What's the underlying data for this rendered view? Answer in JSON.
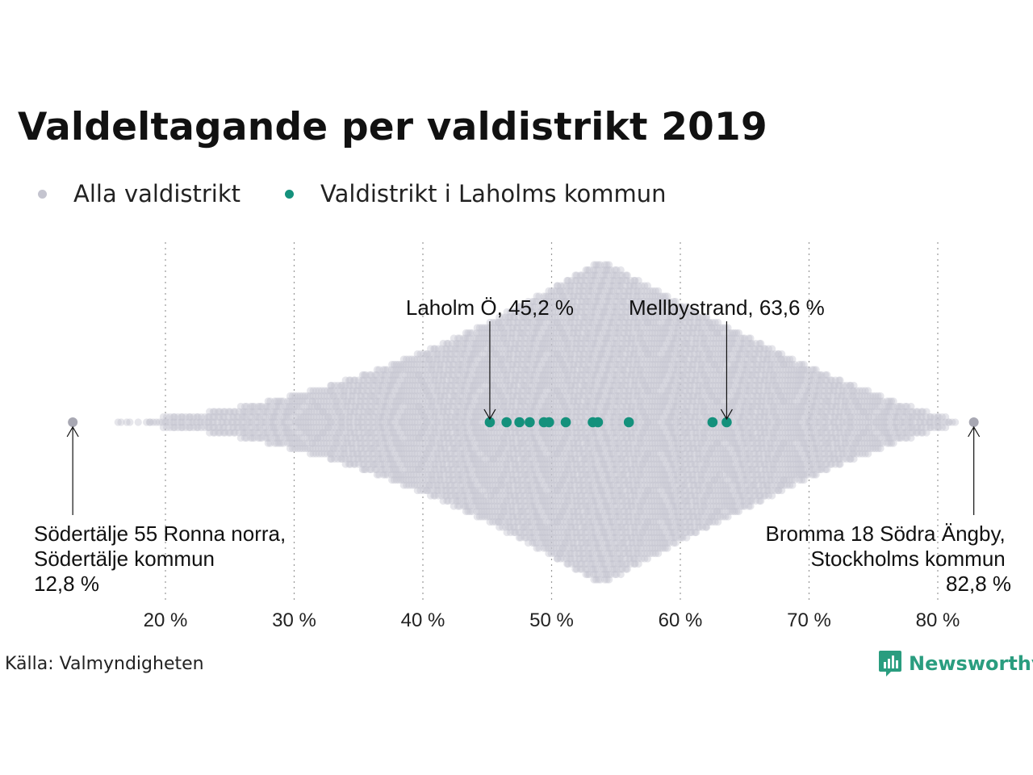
{
  "title": "Valdeltagande per valdistrikt 2019",
  "legend": [
    {
      "label": "Alla valdistrikt",
      "color": "#c4c4cf"
    },
    {
      "label": "Valdistrikt i Laholms kommun",
      "color": "#14917c"
    }
  ],
  "source": "Källa: Valmyndigheten",
  "brand": {
    "name": "Newsworthy",
    "icon": "newsworthy-logo-icon",
    "color": "#2a9d7f"
  },
  "chart_data": {
    "type": "scatter",
    "xlim": [
      10,
      85
    ],
    "x_ticks": [
      20,
      30,
      40,
      50,
      60,
      70,
      80
    ],
    "x_tick_labels": [
      "20 %",
      "30 %",
      "40 %",
      "50 %",
      "60 %",
      "70 %",
      "80 %"
    ],
    "grid": "vertical-dotted",
    "series": [
      {
        "name": "Alla valdistrikt",
        "color": "#c4c4cf",
        "distribution": "beeswarm",
        "min": 12.8,
        "max": 82.8,
        "mode": 53.8
      },
      {
        "name": "Valdistrikt i Laholms kommun",
        "color": "#14917c",
        "values": [
          45.2,
          46.5,
          47.5,
          48.3,
          49.4,
          49.8,
          51.1,
          53.2,
          53.6,
          56.0,
          62.5,
          63.6
        ]
      }
    ],
    "annotations": [
      {
        "lines": [
          "Laholm Ö, 45,2 %"
        ],
        "value": 45.2
      },
      {
        "lines": [
          "Mellbystrand, 63,6 %"
        ],
        "value": 63.6
      },
      {
        "lines": [
          "Södertälje 55 Ronna norra,",
          "Södertälje kommun",
          "12,8 %"
        ],
        "value": 12.8
      },
      {
        "lines": [
          "Bromma 18 Södra Ängby,",
          "Stockholms kommun",
          "82,8 %"
        ],
        "value": 82.8
      }
    ]
  }
}
